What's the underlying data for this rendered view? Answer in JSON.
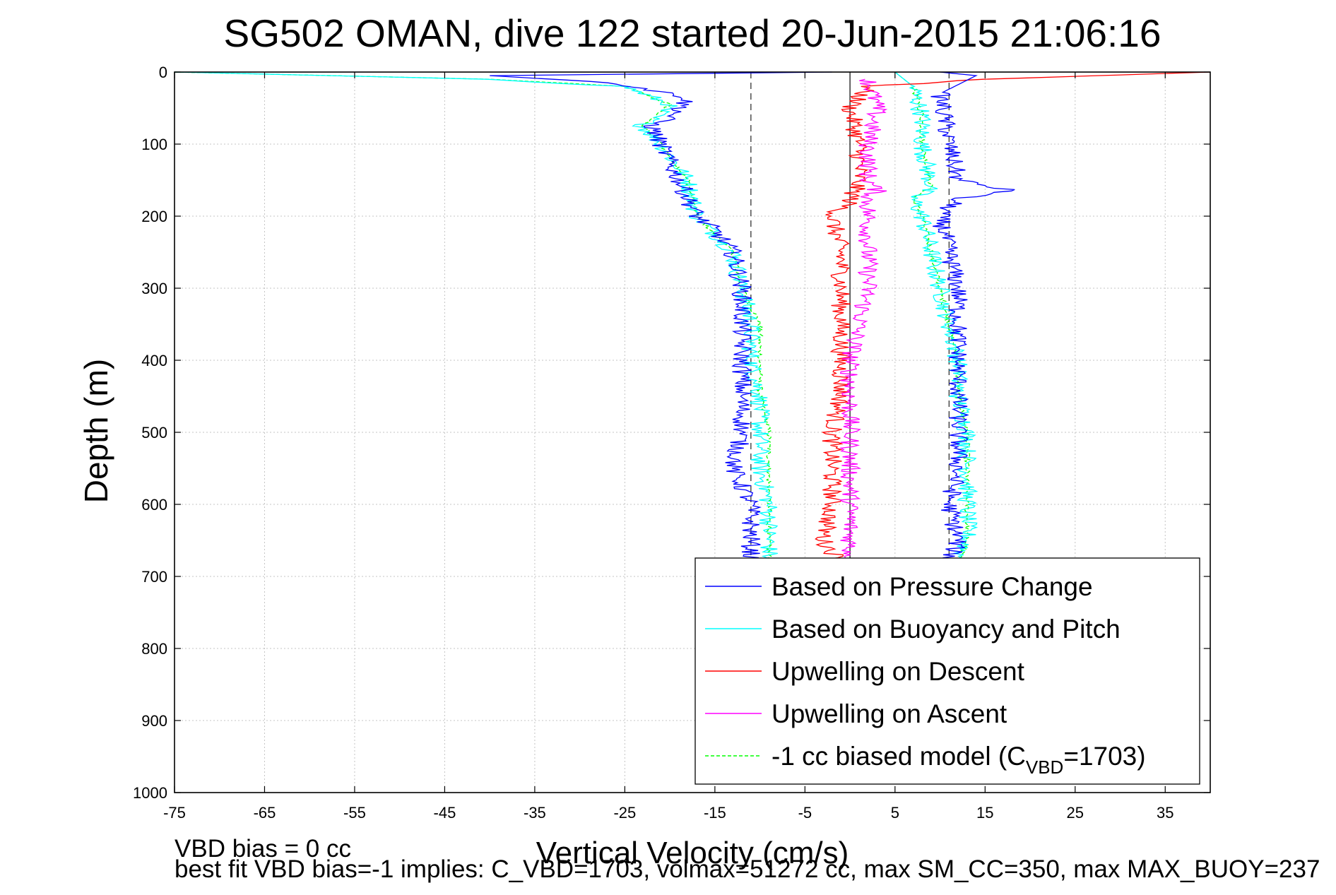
{
  "chart_data": {
    "type": "line",
    "title": "SG502 OMAN, dive 122 started 20-Jun-2015 21:06:16",
    "xlabel": "Vertical Velocity (cm/s)",
    "ylabel": "Depth (m)",
    "xlim": [
      -75,
      40
    ],
    "ylim": [
      0,
      1000
    ],
    "y_reversed": true,
    "grid": true,
    "legend_position": "lower-right",
    "x_ticks": [
      -75,
      -65,
      -55,
      -45,
      -35,
      -25,
      -15,
      -5,
      5,
      15,
      25,
      35
    ],
    "y_ticks": [
      0,
      100,
      200,
      300,
      400,
      500,
      600,
      700,
      800,
      900,
      1000
    ],
    "reference_lines": {
      "dashed_x": [
        -11,
        11
      ],
      "solid_x": [
        0
      ]
    },
    "series": [
      {
        "name": "Based on Pressure Change",
        "color": "#0000ff",
        "style": "solid",
        "descent_profile": [
          [
            -2,
            0
          ],
          [
            -40,
            5
          ],
          [
            -26,
            15
          ],
          [
            -18,
            35
          ],
          [
            -19,
            55
          ],
          [
            -22,
            75
          ],
          [
            -21,
            100
          ],
          [
            -19,
            150
          ],
          [
            -17,
            200
          ],
          [
            -15,
            220
          ],
          [
            -13,
            250
          ],
          [
            -12,
            300
          ],
          [
            -12,
            350
          ],
          [
            -12,
            400
          ],
          [
            -12,
            450
          ],
          [
            -12,
            500
          ],
          [
            -13,
            550
          ],
          [
            -11,
            600
          ],
          [
            -11,
            650
          ],
          [
            -11,
            680
          ]
        ],
        "ascent_profile": [
          [
            10,
            0
          ],
          [
            14,
            5
          ],
          [
            10,
            30
          ],
          [
            11,
            100
          ],
          [
            12,
            150
          ],
          [
            18,
            165
          ],
          [
            12,
            175
          ],
          [
            10,
            200
          ],
          [
            11,
            250
          ],
          [
            12,
            300
          ],
          [
            12,
            350
          ],
          [
            12,
            400
          ],
          [
            12,
            450
          ],
          [
            12,
            500
          ],
          [
            12,
            550
          ],
          [
            11,
            600
          ],
          [
            12,
            650
          ],
          [
            11,
            680
          ]
        ]
      },
      {
        "name": "Based on Buoyancy and Pitch",
        "color": "#00ffff",
        "style": "solid",
        "descent_profile": [
          [
            -75,
            0
          ],
          [
            -40,
            10
          ],
          [
            -25,
            20
          ],
          [
            -20,
            45
          ],
          [
            -23,
            75
          ],
          [
            -21,
            100
          ],
          [
            -18,
            150
          ],
          [
            -17,
            200
          ],
          [
            -13,
            250
          ],
          [
            -12,
            300
          ],
          [
            -11,
            350
          ],
          [
            -11,
            400
          ],
          [
            -10,
            450
          ],
          [
            -10,
            500
          ],
          [
            -10,
            550
          ],
          [
            -9,
            600
          ],
          [
            -9,
            650
          ],
          [
            -9,
            680
          ]
        ],
        "ascent_profile": [
          [
            5,
            0
          ],
          [
            7,
            20
          ],
          [
            8,
            60
          ],
          [
            8,
            100
          ],
          [
            9,
            160
          ],
          [
            7,
            175
          ],
          [
            8,
            200
          ],
          [
            9,
            250
          ],
          [
            10,
            300
          ],
          [
            11,
            350
          ],
          [
            12,
            400
          ],
          [
            12,
            450
          ],
          [
            13,
            500
          ],
          [
            13,
            550
          ],
          [
            13,
            600
          ],
          [
            13,
            650
          ],
          [
            12,
            680
          ]
        ]
      },
      {
        "name": "Upwelling on Descent",
        "color": "#ff0000",
        "style": "solid",
        "profile": [
          [
            40,
            0
          ],
          [
            15,
            10
          ],
          [
            2,
            20
          ],
          [
            0,
            50
          ],
          [
            1,
            100
          ],
          [
            1,
            150
          ],
          [
            0,
            180
          ],
          [
            -2,
            200
          ],
          [
            -1,
            250
          ],
          [
            -1,
            300
          ],
          [
            -1,
            350
          ],
          [
            -1,
            400
          ],
          [
            -1,
            450
          ],
          [
            -2,
            500
          ],
          [
            -2,
            550
          ],
          [
            -2,
            600
          ],
          [
            -3,
            650
          ],
          [
            -1,
            680
          ]
        ]
      },
      {
        "name": "Upwelling on Ascent",
        "color": "#ff00ff",
        "style": "solid",
        "profile": [
          [
            2,
            10
          ],
          [
            3,
            50
          ],
          [
            2,
            100
          ],
          [
            2,
            150
          ],
          [
            3,
            165
          ],
          [
            2,
            175
          ],
          [
            2,
            200
          ],
          [
            2,
            250
          ],
          [
            2,
            300
          ],
          [
            1,
            350
          ],
          [
            0,
            400
          ],
          [
            0,
            450
          ],
          [
            0,
            500
          ],
          [
            0,
            550
          ],
          [
            0,
            600
          ],
          [
            0,
            650
          ],
          [
            0,
            680
          ]
        ]
      },
      {
        "name": "-1 cc biased model (C",
        "name_subscript": "VBD",
        "name_suffix": "=1703)",
        "color": "#00ff00",
        "style": "dashed",
        "descent_profile": [
          [
            -75,
            0
          ],
          [
            -40,
            10
          ],
          [
            -25,
            20
          ],
          [
            -20,
            45
          ],
          [
            -23,
            75
          ],
          [
            -21,
            100
          ],
          [
            -18,
            150
          ],
          [
            -17,
            200
          ],
          [
            -13,
            250
          ],
          [
            -12,
            300
          ],
          [
            -10,
            350
          ],
          [
            -10,
            400
          ],
          [
            -10,
            450
          ],
          [
            -9,
            500
          ],
          [
            -9,
            550
          ],
          [
            -9,
            600
          ],
          [
            -9,
            650
          ],
          [
            -9,
            680
          ]
        ],
        "ascent_profile": [
          [
            5,
            0
          ],
          [
            7,
            20
          ],
          [
            8,
            60
          ],
          [
            8,
            100
          ],
          [
            9,
            160
          ],
          [
            7,
            175
          ],
          [
            8,
            200
          ],
          [
            9,
            250
          ],
          [
            10,
            300
          ],
          [
            11,
            350
          ],
          [
            12,
            400
          ],
          [
            12,
            450
          ],
          [
            13,
            500
          ],
          [
            13,
            550
          ],
          [
            13,
            600
          ],
          [
            13,
            650
          ],
          [
            12,
            680
          ]
        ]
      }
    ]
  },
  "footer": {
    "line1": "VBD bias = 0 cc",
    "line2": "best fit VBD bias=-1 implies: C_VBD=1703, volmax=51272 cc, max SM_CC=350, max MAX_BUOY=237"
  }
}
